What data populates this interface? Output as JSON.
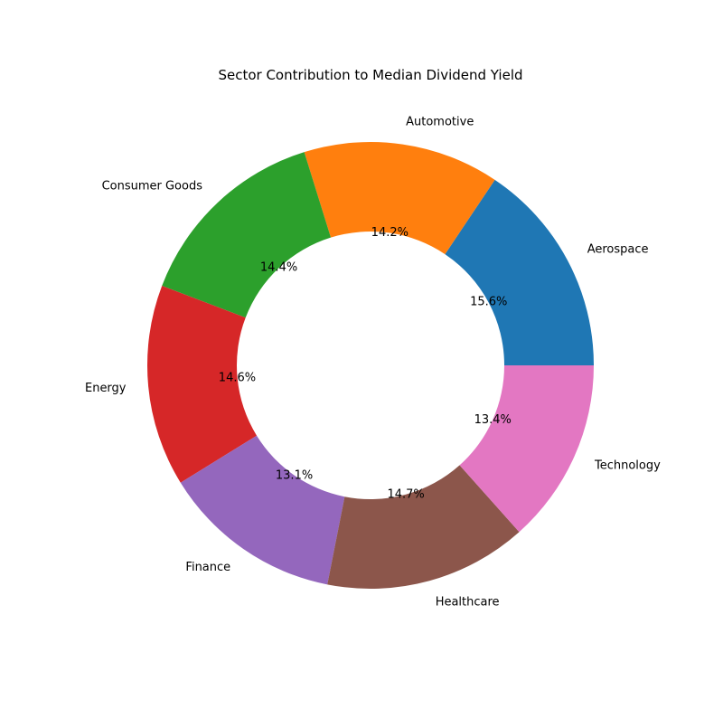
{
  "chart_data": {
    "type": "pie",
    "title": "Sector Contribution to Median Dividend Yield",
    "categories": [
      "Aerospace",
      "Automotive",
      "Consumer Goods",
      "Energy",
      "Finance",
      "Healthcare",
      "Technology"
    ],
    "values": [
      15.6,
      14.2,
      14.4,
      14.6,
      13.1,
      14.7,
      13.4
    ],
    "value_labels": [
      "15.6%",
      "14.2%",
      "14.4%",
      "14.6%",
      "13.1%",
      "14.7%",
      "13.4%"
    ],
    "colors": [
      "#1f77b4",
      "#ff7f0e",
      "#2ca02c",
      "#d62728",
      "#9467bd",
      "#8c564b",
      "#e377c2"
    ],
    "donut": true,
    "start_angle_deg": 0,
    "direction": "counterclockwise",
    "legend": "none"
  }
}
